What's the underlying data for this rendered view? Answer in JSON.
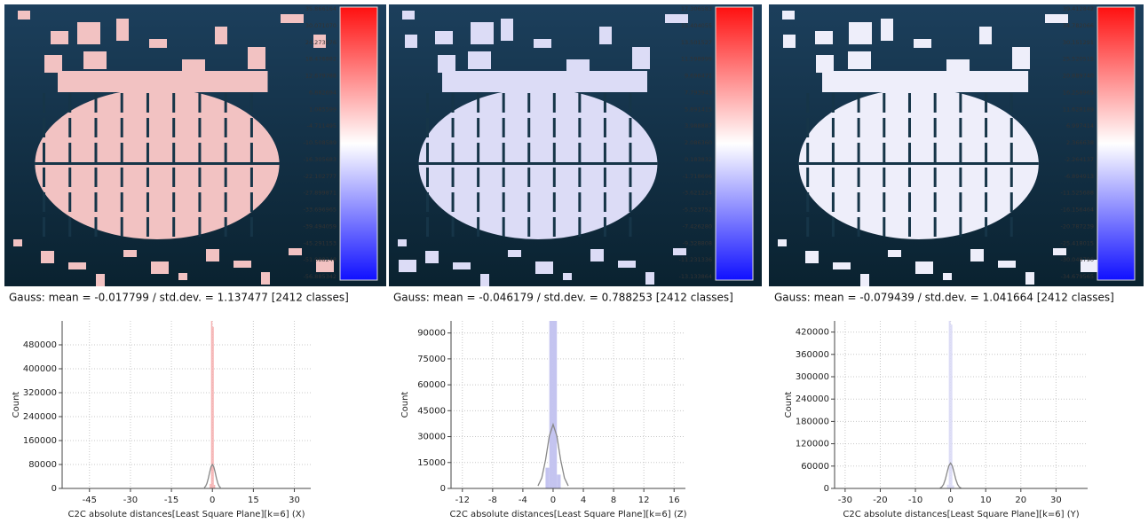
{
  "panels": [
    {
      "gauss": "Gauss: mean = -0.017799 / std.dev. = 1.137477 [2412 classes]",
      "building_color": "#f2c2c2",
      "colorbar_labels": [
        "35.866164",
        "30.071070",
        "24.273976",
        "18.476882",
        "12.679788",
        "6.882694",
        "1.085599",
        "-4.711495",
        "-10.508589",
        "-16.305683",
        "-22.102777",
        "-27.899871",
        "-33.696965",
        "-39.494059",
        "-45.291153",
        "-51.088248",
        "-56.885342"
      ]
    },
    {
      "gauss": "Gauss: mean = -0.046179 / std.dev. = 0.788253 [2412 classes]",
      "building_color": "#dcdcf6",
      "colorbar_labels": [
        "17.306583",
        "15.404055",
        "13.501527",
        "11.598999",
        "9.696471",
        "7.793943",
        "5.891415",
        "3.988887",
        "2.086360",
        "0.183832",
        "-1.718696",
        "-3.621224",
        "-5.523752",
        "-7.426280",
        "-9.328808",
        "-11.231336",
        "-13.133864"
      ]
    },
    {
      "gauss": "Gauss: mean = -0.079439 / std.dev. = 1.041664 [2412 classes]",
      "building_color": "#eeeefa",
      "colorbar_labels": [
        "39.412842",
        "34.782066",
        "30.151291",
        "25.520515",
        "20.889740",
        "16.258965",
        "11.628189",
        "6.997414",
        "2.366638",
        "-2.264137",
        "-6.894913",
        "-11.525688",
        "-16.156464",
        "-20.787239",
        "-25.418015",
        "-30.048790",
        "-34.679565"
      ]
    }
  ],
  "chart_data": [
    {
      "type": "histogram",
      "xlabel": "C2C absolute distances[Least Square Plane][k=6] (X)",
      "ylabel": "Count",
      "bins": [
        -1,
        -0.5,
        0,
        0.5,
        1
      ],
      "counts": [
        15000,
        560000,
        540000,
        12000
      ],
      "color": "#f6b4b4",
      "curve": {
        "color": "#888888",
        "x": [
          -3,
          -2.5,
          -2,
          -1.5,
          -1,
          -0.5,
          0,
          0.5,
          1,
          1.5,
          2,
          2.5,
          3
        ],
        "y": [
          2500,
          7100,
          17000,
          33500,
          54300,
          72600,
          80000,
          72600,
          54300,
          33500,
          17000,
          7100,
          2500
        ]
      },
      "xlim": [
        -55,
        36
      ],
      "ylim": [
        0,
        560000
      ],
      "xticks": [
        -45,
        -30,
        -15,
        0,
        15,
        30
      ],
      "yticks": [
        0,
        80000,
        160000,
        240000,
        320000,
        400000,
        480000
      ],
      "grid": true
    },
    {
      "type": "histogram",
      "xlabel": "C2C absolute distances[Least Square Plane][k=6] (Z)",
      "ylabel": "Count",
      "bins": [
        -1,
        -0.5,
        0,
        0.5,
        1
      ],
      "counts": [
        12000,
        97000,
        97000,
        8000
      ],
      "color": "#c4c4f0",
      "curve": {
        "color": "#888888",
        "x": [
          -2,
          -1.5,
          -1,
          -0.5,
          0,
          0.5,
          1,
          1.5,
          2
        ],
        "y": [
          1500,
          6100,
          16500,
          30300,
          37000,
          30300,
          16500,
          6100,
          1500
        ]
      },
      "xlim": [
        -13.5,
        17.5
      ],
      "ylim": [
        0,
        97000
      ],
      "xticks": [
        -12,
        -8,
        -4,
        0,
        4,
        8,
        12,
        16
      ],
      "yticks": [
        0,
        15000,
        30000,
        45000,
        60000,
        75000,
        90000
      ],
      "grid": true
    },
    {
      "type": "histogram",
      "xlabel": "C2C absolute distances[Least Square Plane][k=6] (Y)",
      "ylabel": "Count",
      "bins": [
        -1,
        -0.5,
        0,
        0.5,
        1
      ],
      "counts": [
        10000,
        450000,
        440000,
        8000
      ],
      "color": "#dcdcf6",
      "curve": {
        "color": "#888888",
        "x": [
          -3,
          -2.5,
          -2,
          -1.5,
          -1,
          -0.5,
          0,
          0.5,
          1,
          1.5,
          2,
          2.5,
          3
        ],
        "y": [
          1100,
          3800,
          10700,
          24100,
          42900,
          60600,
          68000,
          60600,
          42900,
          24100,
          10700,
          3800,
          1100
        ]
      },
      "xlim": [
        -33,
        39
      ],
      "ylim": [
        0,
        450000
      ],
      "xticks": [
        -30,
        -20,
        -10,
        0,
        10,
        20,
        30
      ],
      "yticks": [
        0,
        60000,
        120000,
        180000,
        240000,
        300000,
        360000,
        420000
      ],
      "grid": true
    }
  ]
}
